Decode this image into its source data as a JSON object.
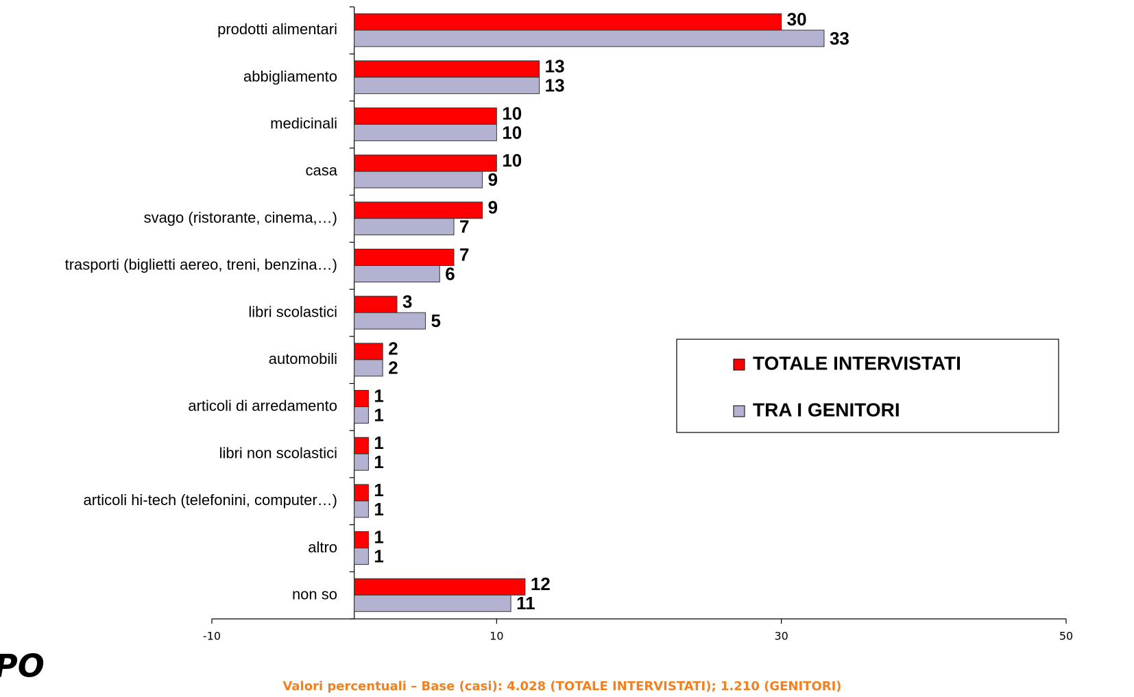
{
  "chart_data": {
    "type": "hbar",
    "categories": [
      "prodotti alimentari",
      "abbigliamento",
      "medicinali",
      "casa",
      "svago (ristorante, cinema,…)",
      "trasporti (biglietti aereo, treni, benzina…)",
      "libri scolastici",
      "automobili",
      "articoli di arredamento",
      "libri non scolastici",
      "articoli hi-tech (telefonini, computer…)",
      "altro",
      "non so"
    ],
    "series": [
      {
        "name": "TOTALE INTERVISTATI",
        "color": "#ff0000",
        "values": [
          30,
          13,
          10,
          10,
          9,
          7,
          3,
          2,
          1,
          1,
          1,
          1,
          12
        ]
      },
      {
        "name": "TRA I GENITORI",
        "color": "#b3b3d1",
        "values": [
          33,
          13,
          10,
          9,
          7,
          6,
          5,
          2,
          1,
          1,
          1,
          1,
          11
        ]
      }
    ],
    "xlim": [
      -10,
      50
    ],
    "xticks": [
      -10,
      10,
      30,
      50
    ],
    "legend": "right",
    "footnote": "Valori percentuali – Base (casi): 4.028 (TOTALE INTERVISTATI); 1.210 (GENITORI)",
    "logo_text": "PO"
  }
}
